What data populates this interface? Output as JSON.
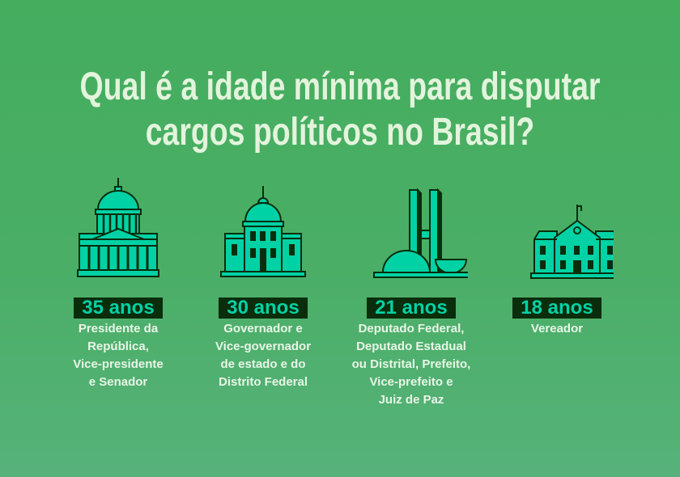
{
  "title": {
    "lines": [
      "Qual é a idade mínima para disputar",
      "cargos políticos no Brasil?"
    ]
  },
  "colors": {
    "background": "#45ad5f",
    "accent": "#00d2a5",
    "dark": "#0a2d0c",
    "text": "#e3f4dc"
  },
  "items": [
    {
      "icon": "capitol-dome-building-icon",
      "age": "35 anos",
      "roles": [
        "Presidente da",
        "República,",
        "Vice-presidente",
        "e Senador"
      ]
    },
    {
      "icon": "state-government-building-icon",
      "age": "30 anos",
      "roles": [
        "Governador e",
        "Vice-governador",
        "de estado e do",
        "Distrito Federal"
      ]
    },
    {
      "icon": "national-congress-building-icon",
      "age": "21 anos",
      "roles": [
        "Deputado Federal,",
        "Deputado Estadual",
        "ou Distrital, Prefeito,",
        "Vice-prefeito e",
        "Juiz de Paz"
      ]
    },
    {
      "icon": "city-hall-building-icon",
      "age": "18 anos",
      "roles": [
        "Vereador"
      ]
    }
  ]
}
